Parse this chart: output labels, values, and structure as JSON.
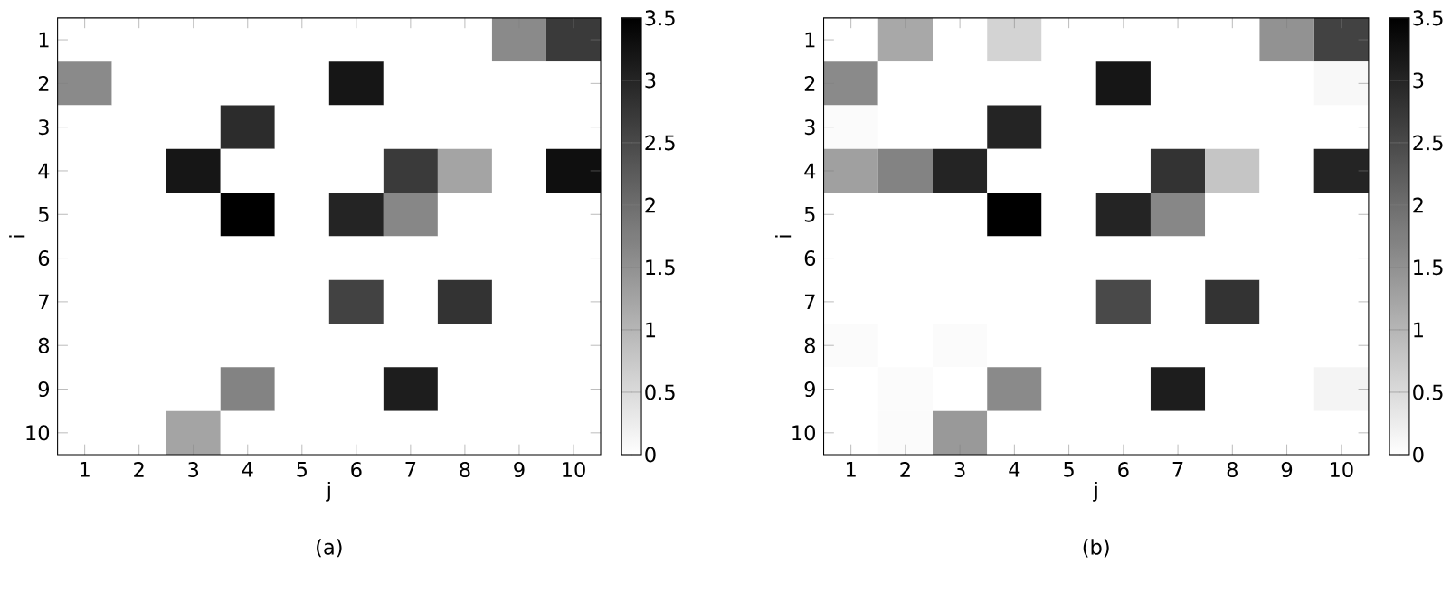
{
  "chart_data": [
    {
      "type": "heatmap",
      "xlabel": "j",
      "ylabel": "i",
      "annotations": [
        "(a)"
      ],
      "categories": [
        "1",
        "2",
        "3",
        "4",
        "5",
        "6",
        "7",
        "8",
        "9",
        "10"
      ],
      "y_categories": [
        "1",
        "2",
        "3",
        "4",
        "5",
        "6",
        "7",
        "8",
        "9",
        "10"
      ],
      "cells": [
        [
          0,
          0,
          0,
          0,
          0,
          0,
          0,
          0,
          1.6,
          2.7
        ],
        [
          1.6,
          0,
          0,
          0,
          0,
          3.2,
          0,
          0,
          0,
          0
        ],
        [
          0,
          0,
          0,
          2.9,
          0,
          0,
          0,
          0,
          0,
          0
        ],
        [
          0,
          0,
          3.2,
          0,
          0,
          0,
          2.7,
          1.25,
          0,
          3.3
        ],
        [
          0,
          0,
          0,
          3.5,
          0,
          3.0,
          1.65,
          0,
          0,
          0
        ],
        [
          0,
          0,
          0,
          0,
          0,
          0,
          0,
          0,
          0,
          0
        ],
        [
          0,
          0,
          0,
          0,
          0,
          2.6,
          0,
          2.8,
          0,
          0
        ],
        [
          0,
          0,
          0,
          0,
          0,
          0,
          0,
          0,
          0,
          0
        ],
        [
          0,
          0,
          0,
          1.7,
          0,
          0,
          3.1,
          0,
          0,
          0
        ],
        [
          0,
          0,
          1.25,
          0,
          0,
          0,
          0,
          0,
          0,
          0
        ]
      ],
      "clim": [
        0,
        3.5
      ],
      "cticks": [
        0,
        0.5,
        1,
        1.5,
        2,
        2.5,
        3,
        3.5
      ]
    },
    {
      "type": "heatmap",
      "xlabel": "j",
      "ylabel": "i",
      "annotations": [
        "(b)"
      ],
      "categories": [
        "1",
        "2",
        "3",
        "4",
        "5",
        "6",
        "7",
        "8",
        "9",
        "10"
      ],
      "y_categories": [
        "1",
        "2",
        "3",
        "4",
        "5",
        "6",
        "7",
        "8",
        "9",
        "10"
      ],
      "cells": [
        [
          0,
          1.2,
          0,
          0.6,
          0,
          0,
          0,
          0,
          1.5,
          2.6
        ],
        [
          1.6,
          0,
          0,
          0,
          0,
          3.2,
          0,
          0,
          0,
          0.1
        ],
        [
          0.05,
          0,
          0,
          3.0,
          0,
          0,
          0,
          0,
          0,
          0
        ],
        [
          1.3,
          1.7,
          3.0,
          0,
          0,
          0,
          2.8,
          0.8,
          0,
          3.0
        ],
        [
          0,
          0,
          0,
          3.5,
          0,
          3.0,
          1.65,
          0,
          0,
          0
        ],
        [
          0,
          0,
          0,
          0,
          0,
          0,
          0,
          0,
          0,
          0
        ],
        [
          0,
          0,
          0,
          0,
          0,
          2.5,
          0,
          2.8,
          0,
          0
        ],
        [
          0.05,
          0,
          0.05,
          0,
          0,
          0,
          0,
          0,
          0,
          0
        ],
        [
          0,
          0.05,
          0,
          1.6,
          0,
          0,
          3.1,
          0,
          0,
          0.15
        ],
        [
          0,
          0.05,
          1.4,
          0,
          0,
          0,
          0,
          0,
          0,
          0
        ]
      ],
      "clim": [
        0,
        3.5
      ],
      "cticks": [
        0,
        0.5,
        1,
        1.5,
        2,
        2.5,
        3,
        3.5
      ]
    }
  ]
}
